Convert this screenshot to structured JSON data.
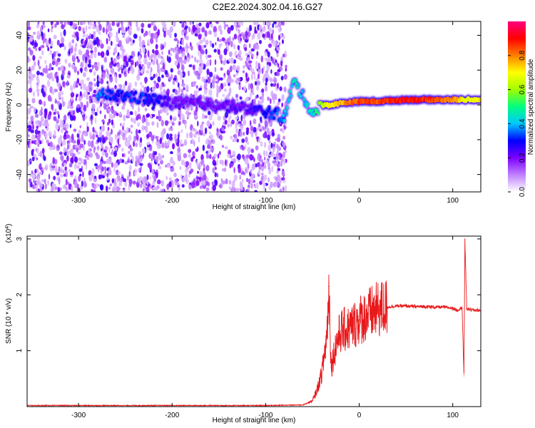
{
  "title": "C2E2.2024.302.04.16.G27",
  "chart_data": [
    {
      "type": "heatmap",
      "xlabel": "Height of straight line (km)",
      "ylabel": "Frequency (Hz)",
      "xlim": [
        -355,
        130
      ],
      "ylim": [
        -50,
        48
      ],
      "xticks": [
        -300,
        -200,
        -100,
        0,
        100
      ],
      "yticks": [
        -40,
        -20,
        0,
        20,
        40
      ],
      "colorbar": {
        "label": "Normalized spectral amplitude",
        "range": [
          0,
          1
        ],
        "ticks": [
          "0.0",
          "0.2",
          "0.4",
          "0.6",
          "0.8"
        ],
        "colors": [
          "#ffffff",
          "#c080ff",
          "#7b00ff",
          "#0000ff",
          "#00c8ff",
          "#00ff80",
          "#a0ff00",
          "#ffff00",
          "#ff8000",
          "#ff0000",
          "#ff0080"
        ]
      },
      "ridge": {
        "x": [
          -280,
          -250,
          -220,
          -200,
          -170,
          -150,
          -120,
          -100,
          -85,
          -80,
          -70,
          -60,
          -50,
          -40,
          -30,
          -20,
          0,
          20,
          50,
          80,
          100,
          110,
          130
        ],
        "y": [
          6,
          5,
          3,
          1,
          1,
          0,
          -2,
          -4,
          -6,
          -8,
          14,
          5,
          -5,
          0,
          0,
          1,
          2,
          2,
          3,
          3,
          3,
          3,
          3
        ],
        "amplitude": [
          0.35,
          0.3,
          0.3,
          0.2,
          0.2,
          0.2,
          0.2,
          0.3,
          0.35,
          0.4,
          0.45,
          0.4,
          0.45,
          0.6,
          0.7,
          0.75,
          0.85,
          0.85,
          0.9,
          0.85,
          0.8,
          0.7,
          0.7
        ]
      }
    },
    {
      "type": "line",
      "xlabel": "Height of straight line (km)",
      "ylabel": "SNR (10 * v/v)",
      "y_multiplier": "(x10^4)",
      "xlim": [
        -355,
        130
      ],
      "ylim": [
        0,
        3.05
      ],
      "xticks": [
        -300,
        -200,
        -100,
        0,
        100
      ],
      "yticks": [
        1,
        2,
        3
      ],
      "color": "#e8191b",
      "series": [
        {
          "x": [
            -355,
            -300,
            -200,
            -100,
            -60,
            -50,
            -45,
            -40,
            -35,
            -32,
            -30,
            -25,
            -20,
            -10,
            0,
            10,
            20,
            30,
            40,
            50,
            60,
            70,
            80,
            90,
            100,
            105,
            110,
            112,
            113,
            115,
            120,
            130
          ],
          "y": [
            0.02,
            0.02,
            0.02,
            0.02,
            0.03,
            0.1,
            0.3,
            0.6,
            1.2,
            2.15,
            0.7,
            1.1,
            1.35,
            1.4,
            1.55,
            1.65,
            1.73,
            1.78,
            1.8,
            1.8,
            1.79,
            1.79,
            1.78,
            1.78,
            1.76,
            1.72,
            1.78,
            0.55,
            3.0,
            1.75,
            1.73,
            1.72
          ]
        }
      ]
    }
  ]
}
